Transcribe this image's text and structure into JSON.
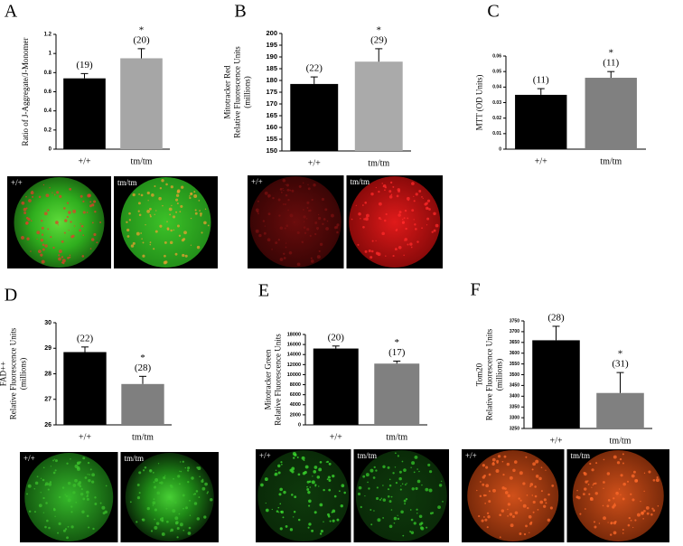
{
  "chart_data": [
    {
      "type": "bar",
      "panel": "A",
      "ylabel": [
        "Ratio of J-Aggregate/J-Monomer"
      ],
      "categories": [
        "+/+",
        "tm/tm"
      ],
      "values": [
        0.74,
        0.95
      ],
      "errors": [
        0.05,
        0.1
      ],
      "colors": [
        "#000000",
        "#a6a6a6"
      ],
      "n_labels": [
        "(19)",
        "(20)"
      ],
      "star": "*",
      "ylim": [
        0,
        1.2
      ],
      "yticks": [
        0,
        0.2,
        0.4,
        0.6,
        0.8,
        1,
        1.2
      ]
    },
    {
      "type": "bar",
      "panel": "B",
      "ylabel": [
        "Mitotracker Red",
        "Relative Fluorescence Units",
        "(millions)"
      ],
      "categories": [
        "+/+",
        "tm/tm"
      ],
      "values": [
        178.5,
        188
      ],
      "errors": [
        3,
        5.5
      ],
      "colors": [
        "#000000",
        "#aaaaaa"
      ],
      "n_labels": [
        "(22)",
        "(29)"
      ],
      "star": "*",
      "ylim": [
        150,
        200
      ],
      "yticks": [
        150,
        155,
        160,
        165,
        170,
        175,
        180,
        185,
        190,
        195,
        200
      ]
    },
    {
      "type": "bar",
      "panel": "C",
      "ylabel": [
        "MTT (OD Units)"
      ],
      "categories": [
        "+/+",
        "tm/tm"
      ],
      "values": [
        0.035,
        0.046
      ],
      "errors": [
        0.004,
        0.004
      ],
      "colors": [
        "#000000",
        "#808080"
      ],
      "n_labels": [
        "(11)",
        "(11)"
      ],
      "star": "*",
      "ylim": [
        0,
        0.06
      ],
      "yticks": [
        0,
        0.01,
        0.02,
        0.03,
        0.04,
        0.05,
        0.06
      ]
    },
    {
      "type": "bar",
      "panel": "D",
      "ylabel": [
        "FAD++",
        "Relative Fluorescence Units",
        "(millions)"
      ],
      "categories": [
        "+/+",
        "tm/tm"
      ],
      "values": [
        28.85,
        27.6
      ],
      "errors": [
        0.2,
        0.3
      ],
      "colors": [
        "#000000",
        "#7f7f7f"
      ],
      "n_labels": [
        "(22)",
        "(28)"
      ],
      "star": "*",
      "ylim": [
        26,
        30
      ],
      "yticks": [
        26,
        27,
        28,
        29,
        30
      ]
    },
    {
      "type": "bar",
      "panel": "E",
      "ylabel": [
        "Mitotracker Green",
        "Relative Fluorescence Units"
      ],
      "categories": [
        "+/+",
        "tm/tm"
      ],
      "values": [
        15200,
        12200
      ],
      "errors": [
        500,
        500
      ],
      "colors": [
        "#000000",
        "#808080"
      ],
      "n_labels": [
        "(20)",
        "(17)"
      ],
      "star": "*",
      "ylim": [
        0,
        18000
      ],
      "yticks": [
        0,
        2000,
        4000,
        6000,
        8000,
        10000,
        12000,
        14000,
        16000,
        18000
      ]
    },
    {
      "type": "bar",
      "panel": "F",
      "ylabel": [
        "Tom20",
        "Relative Fluorescence Units",
        "(millions)"
      ],
      "categories": [
        "+/+",
        "tm/tm"
      ],
      "values": [
        3660,
        3415
      ],
      "errors": [
        65,
        95
      ],
      "colors": [
        "#000000",
        "#808080"
      ],
      "n_labels": [
        "(28)",
        "(31)"
      ],
      "star": "*",
      "ylim": [
        3250,
        3750
      ],
      "yticks": [
        3250,
        3300,
        3350,
        3400,
        3450,
        3500,
        3550,
        3600,
        3650,
        3700,
        3750
      ]
    }
  ]
}
